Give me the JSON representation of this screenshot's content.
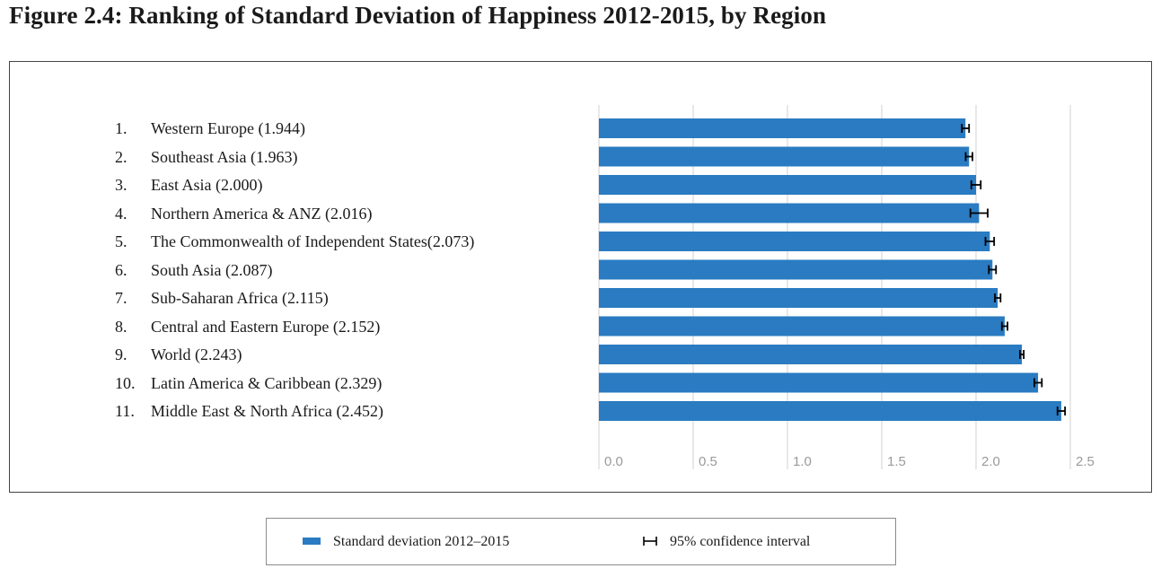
{
  "title": "Figure 2.4: Ranking of Standard Deviation of Happiness 2012-2015, by Region",
  "legend": {
    "bar_label": "Standard deviation 2012–2015",
    "ci_label": "95% confidence interval"
  },
  "colors": {
    "bar": "#2a7bc1",
    "gridline": "#d9d9d9",
    "errorbar": "#000000"
  },
  "chart_data": {
    "type": "bar",
    "orientation": "horizontal",
    "title": "Figure 2.4: Ranking of Standard Deviation of Happiness 2012-2015, by Region",
    "category_labels": [
      {
        "rank": "1.",
        "label": "Western Europe (1.944)"
      },
      {
        "rank": "2.",
        "label": "Southeast Asia (1.963)"
      },
      {
        "rank": "3.",
        "label": "East Asia (2.000)"
      },
      {
        "rank": "4.",
        "label": "Northern America & ANZ (2.016)"
      },
      {
        "rank": "5.",
        "label": "The Commonwealth of Independent States(2.073)"
      },
      {
        "rank": "6.",
        "label": "South Asia (2.087)"
      },
      {
        "rank": "7.",
        "label": "Sub-Saharan Africa (2.115)"
      },
      {
        "rank": "8.",
        "label": "Central and Eastern Europe (2.152)"
      },
      {
        "rank": "9.",
        "label": "World (2.243)"
      },
      {
        "rank": "10.",
        "label": "Latin America & Caribbean (2.329)"
      },
      {
        "rank": "11.",
        "label": "Middle East & North Africa (2.452)"
      }
    ],
    "series": [
      {
        "name": "Standard deviation 2012–2015",
        "values": [
          1.944,
          1.963,
          2.0,
          2.016,
          2.073,
          2.087,
          2.115,
          2.152,
          2.243,
          2.329,
          2.452
        ],
        "ci_low": [
          1.925,
          1.945,
          1.975,
          1.97,
          2.05,
          2.068,
          2.1,
          2.137,
          2.233,
          2.309,
          2.432
        ],
        "ci_high": [
          1.963,
          1.981,
          2.025,
          2.062,
          2.096,
          2.106,
          2.13,
          2.167,
          2.253,
          2.349,
          2.472
        ]
      }
    ],
    "xlim": [
      0,
      2.5
    ],
    "xticks": [
      "0.0",
      "0.5",
      "1.0",
      "1.5",
      "2.0",
      "2.5"
    ],
    "tick_values": [
      0,
      0.5,
      1.0,
      1.5,
      2.0,
      2.5
    ],
    "grid": true,
    "legend_position": "bottom"
  }
}
